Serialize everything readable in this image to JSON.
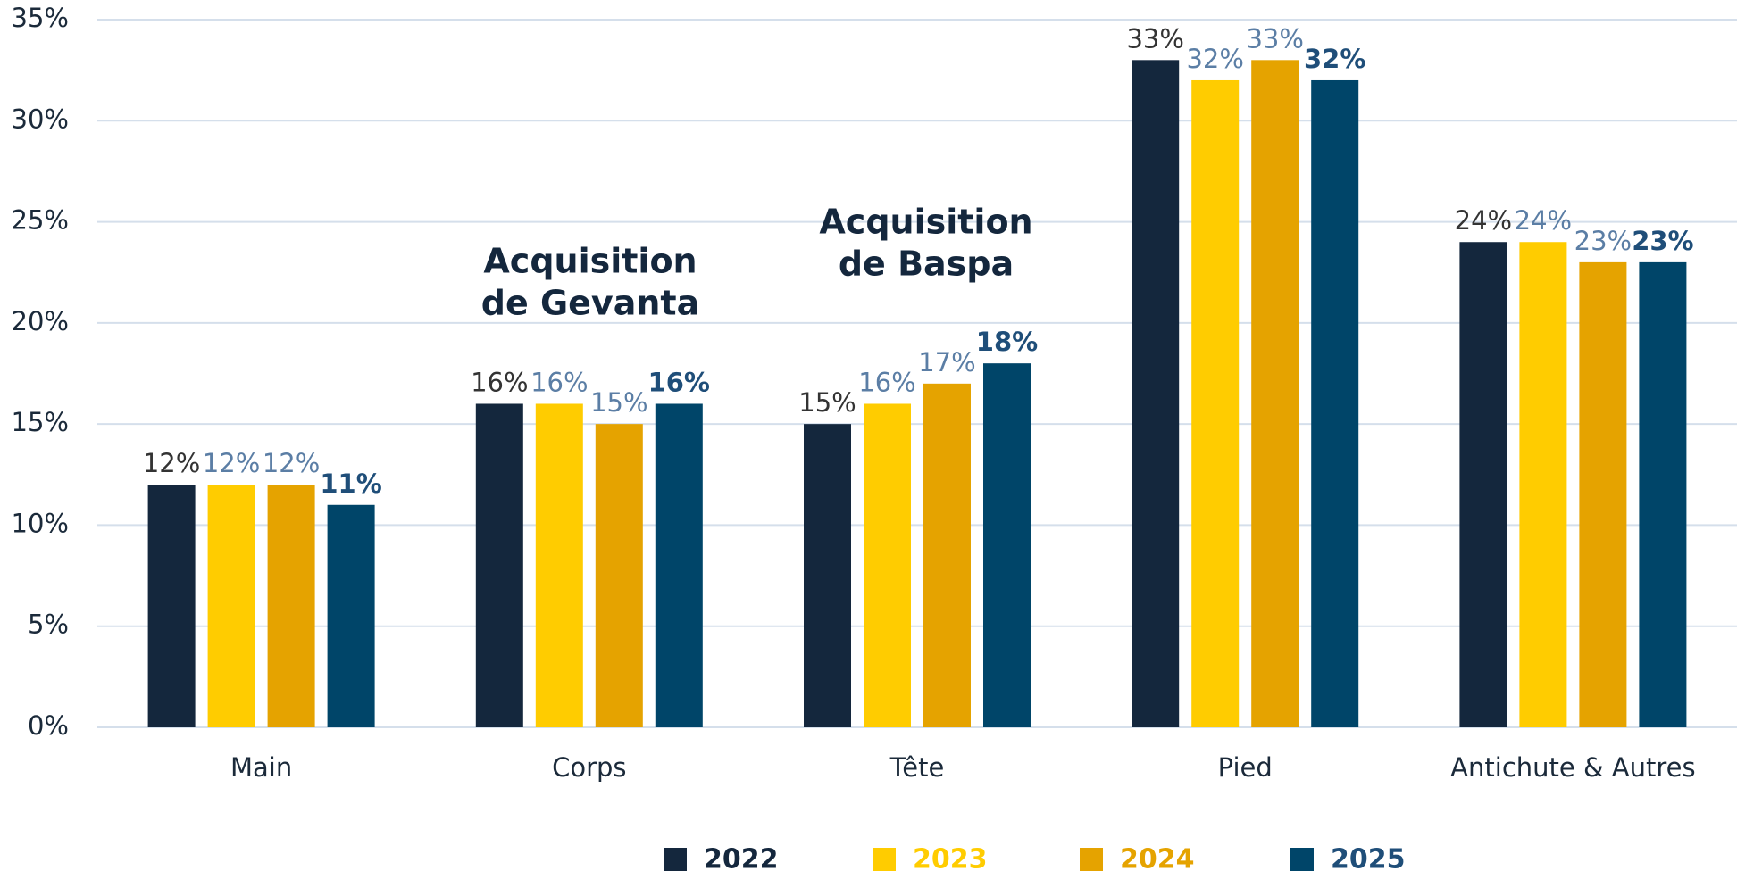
{
  "chart_data": {
    "type": "bar",
    "categories": [
      "Main",
      "Corps",
      "Tête",
      "Pied",
      "Antichute & Autres"
    ],
    "series": [
      {
        "name": "2022",
        "color": "#14273d",
        "label_color": "#333333",
        "values": [
          12,
          16,
          15,
          33,
          24
        ],
        "value_labels": [
          "12%",
          "16%",
          "15%",
          "33%",
          "24%"
        ]
      },
      {
        "name": "2023",
        "color": "#ffcc00",
        "label_color": "#5b7ea5",
        "values": [
          12,
          16,
          16,
          32,
          24
        ],
        "value_labels": [
          "12%",
          "16%",
          "16%",
          "32%",
          "24%"
        ]
      },
      {
        "name": "2024",
        "color": "#e5a300",
        "label_color": "#5b7ea5",
        "values": [
          12,
          15,
          17,
          33,
          23
        ],
        "value_labels": [
          "12%",
          "15%",
          "17%",
          "33%",
          "23%"
        ]
      },
      {
        "name": "2025",
        "color": "#004569",
        "label_color": "#1f4e79",
        "values": [
          11,
          16,
          18,
          32,
          23
        ],
        "value_labels": [
          "11%",
          "16%",
          "18%",
          "32%",
          "23%"
        ]
      }
    ],
    "ylim": [
      0,
      35
    ],
    "yticks": [
      {
        "value": 0,
        "label": "0%"
      },
      {
        "value": 5,
        "label": "5%"
      },
      {
        "value": 10,
        "label": "10%"
      },
      {
        "value": 15,
        "label": "15%"
      },
      {
        "value": 20,
        "label": "20%"
      },
      {
        "value": 25,
        "label": "25%"
      },
      {
        "value": 30,
        "label": "30%"
      },
      {
        "value": 35,
        "label": "35%"
      }
    ],
    "grid": true,
    "legend": "bottom",
    "annotations": [
      [
        "Acquisition",
        "de Gevanta"
      ],
      [
        "Acquisition",
        "de Baspa"
      ]
    ]
  }
}
